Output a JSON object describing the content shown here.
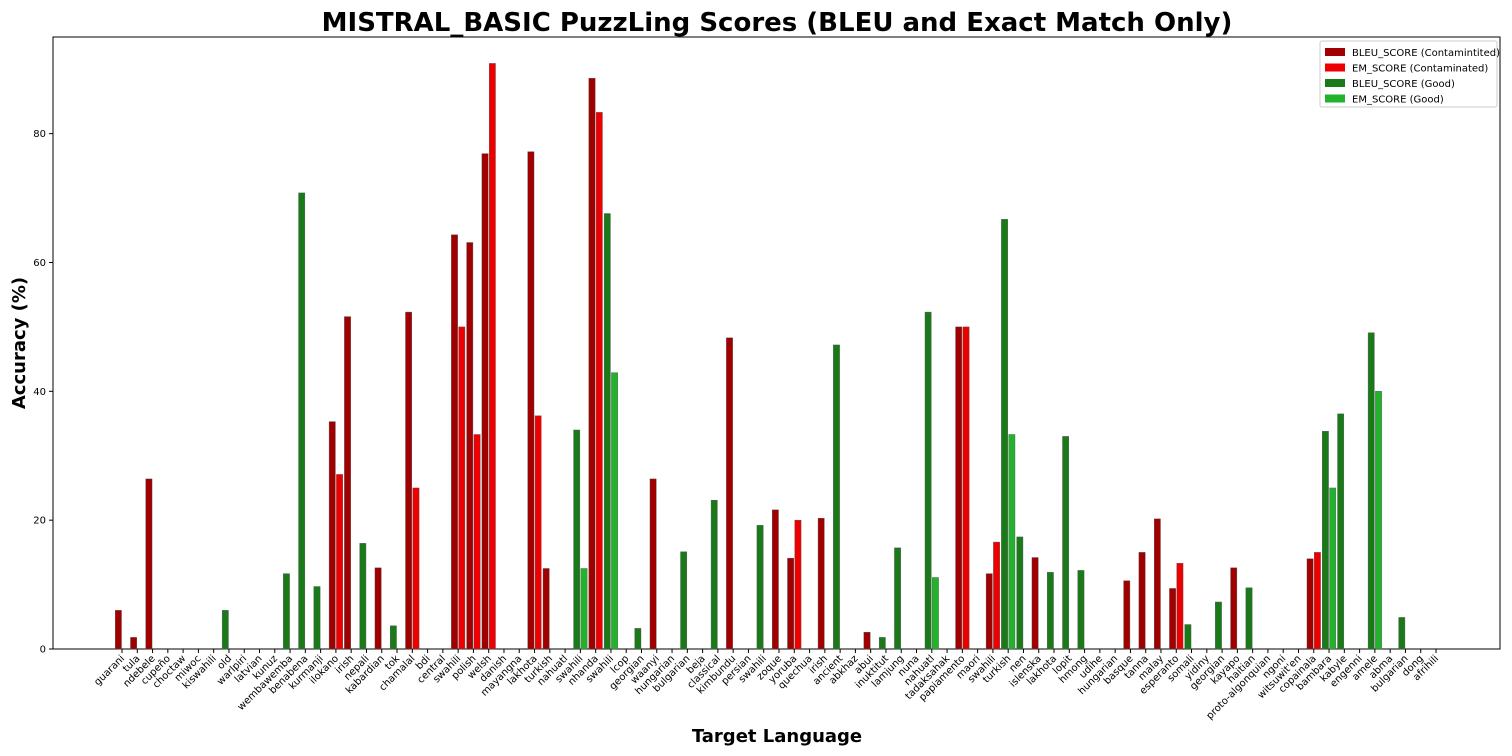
{
  "chart_data": {
    "type": "bar",
    "title": "MISTRAL_BASIC PuzzLing Scores (BLEU and Exact Match Only)",
    "xlabel": "Target Language",
    "ylabel": "Accuracy (%)",
    "ylim": [
      0,
      95
    ],
    "yticks": [
      0,
      20,
      40,
      60,
      80
    ],
    "legend_position": "top-right",
    "colors": {
      "bleu_contaminated": "#a00000",
      "em_contaminated": "#ee0000",
      "bleu_good": "#1a7a1a",
      "em_good": "#22b22c"
    },
    "legend": [
      {
        "key": "bleu_contaminated",
        "label": "BLEU_SCORE (Contamintited)"
      },
      {
        "key": "em_contaminated",
        "label": "EM_SCORE (Contaminated)"
      },
      {
        "key": "bleu_good",
        "label": "BLEU_SCORE (Good)"
      },
      {
        "key": "em_good",
        "label": "EM_SCORE (Good)"
      }
    ],
    "categories": [
      {
        "label": "guarani",
        "group": "contaminated",
        "bleu": 6.0,
        "em": 0
      },
      {
        "label": "tula",
        "group": "contaminated",
        "bleu": 1.8,
        "em": 0
      },
      {
        "label": "ndebele",
        "group": "contaminated",
        "bleu": 26.4,
        "em": 0
      },
      {
        "label": "cupeño",
        "group": "contaminated",
        "bleu": 0,
        "em": 0
      },
      {
        "label": "choctaw",
        "group": "contaminated",
        "bleu": 0,
        "em": 0
      },
      {
        "label": "miwoc",
        "group": "contaminated",
        "bleu": 0,
        "em": 0
      },
      {
        "label": "kiswahili",
        "group": "contaminated",
        "bleu": 0,
        "em": 0
      },
      {
        "label": "old",
        "group": "good",
        "bleu": 6.0,
        "em": 0
      },
      {
        "label": "warlpiri",
        "group": "good",
        "bleu": 0,
        "em": 0
      },
      {
        "label": "latvian",
        "group": "good",
        "bleu": 0,
        "em": 0
      },
      {
        "label": "kunuz",
        "group": "good",
        "bleu": 0,
        "em": 0
      },
      {
        "label": "wembawemba",
        "group": "good",
        "bleu": 11.7,
        "em": 0
      },
      {
        "label": "benabena",
        "group": "good",
        "bleu": 70.8,
        "em": 0
      },
      {
        "label": "kurmanji",
        "group": "good",
        "bleu": 9.7,
        "em": 0
      },
      {
        "label": "ilokano",
        "group": "contaminated",
        "bleu": 35.3,
        "em": 27.1
      },
      {
        "label": "irish",
        "group": "contaminated",
        "bleu": 51.6,
        "em": 0
      },
      {
        "label": "nepali",
        "group": "good",
        "bleu": 16.4,
        "em": 0
      },
      {
        "label": "kabardian",
        "group": "contaminated",
        "bleu": 12.6,
        "em": 0
      },
      {
        "label": "tok",
        "group": "good",
        "bleu": 3.6,
        "em": 0
      },
      {
        "label": "chamalal",
        "group": "contaminated",
        "bleu": 52.3,
        "em": 25.0
      },
      {
        "label": "bdi",
        "group": "contaminated",
        "bleu": 0,
        "em": 0
      },
      {
        "label": "central",
        "group": "contaminated",
        "bleu": 0,
        "em": 0
      },
      {
        "label": "swahili",
        "group": "contaminated",
        "bleu": 64.3,
        "em": 50.0
      },
      {
        "label": "polish",
        "group": "contaminated",
        "bleu": 63.1,
        "em": 33.3
      },
      {
        "label": "welsh",
        "group": "contaminated",
        "bleu": 76.9,
        "em": 90.9
      },
      {
        "label": "danish",
        "group": "contaminated",
        "bleu": 0,
        "em": 0
      },
      {
        "label": "mayangna",
        "group": "contaminated",
        "bleu": 0,
        "em": 0
      },
      {
        "label": "lakhota",
        "group": "contaminated",
        "bleu": 77.2,
        "em": 36.2
      },
      {
        "label": "turkish",
        "group": "contaminated",
        "bleu": 12.5,
        "em": 0
      },
      {
        "label": "nahuatl",
        "group": "contaminated",
        "bleu": 0,
        "em": 0
      },
      {
        "label": "swahili",
        "group": "good",
        "bleu": 34.0,
        "em": 12.5
      },
      {
        "label": "nhanda",
        "group": "contaminated",
        "bleu": 88.6,
        "em": 83.3
      },
      {
        "label": "swahili",
        "group": "good",
        "bleu": 67.6,
        "em": 42.9
      },
      {
        "label": "lcop",
        "group": "good",
        "bleu": 0,
        "em": 0
      },
      {
        "label": "georgian",
        "group": "good",
        "bleu": 3.2,
        "em": 0
      },
      {
        "label": "waanyi",
        "group": "contaminated",
        "bleu": 26.4,
        "em": 0
      },
      {
        "label": "hungarian",
        "group": "good",
        "bleu": 0,
        "em": 0
      },
      {
        "label": "bulgarian",
        "group": "good",
        "bleu": 15.1,
        "em": 0
      },
      {
        "label": "beja",
        "group": "good",
        "bleu": 0,
        "em": 0
      },
      {
        "label": "classical",
        "group": "good",
        "bleu": 23.1,
        "em": 0
      },
      {
        "label": "kimbundu",
        "group": "contaminated",
        "bleu": 48.3,
        "em": 0
      },
      {
        "label": "persian",
        "group": "good",
        "bleu": 0,
        "em": 0
      },
      {
        "label": "swahili",
        "group": "good",
        "bleu": 19.2,
        "em": 0
      },
      {
        "label": "zoque",
        "group": "contaminated",
        "bleu": 21.6,
        "em": 0
      },
      {
        "label": "yoruba",
        "group": "contaminated",
        "bleu": 14.1,
        "em": 20.0
      },
      {
        "label": "quechua",
        "group": "contaminated",
        "bleu": 0,
        "em": 0
      },
      {
        "label": "irish",
        "group": "contaminated",
        "bleu": 20.3,
        "em": 0
      },
      {
        "label": "ancient",
        "group": "good",
        "bleu": 47.2,
        "em": 0
      },
      {
        "label": "abkhaz",
        "group": "good",
        "bleu": 0,
        "em": 0
      },
      {
        "label": "abui",
        "group": "contaminated",
        "bleu": 2.6,
        "em": 0
      },
      {
        "label": "inuktitut",
        "group": "good",
        "bleu": 1.8,
        "em": 0
      },
      {
        "label": "lamjung",
        "group": "good",
        "bleu": 15.7,
        "em": 0
      },
      {
        "label": "nuna",
        "group": "good",
        "bleu": 0,
        "em": 0
      },
      {
        "label": "nahuatl",
        "group": "good",
        "bleu": 52.3,
        "em": 11.1
      },
      {
        "label": "tadaksahak",
        "group": "good",
        "bleu": 0,
        "em": 0
      },
      {
        "label": "papiamento",
        "group": "contaminated",
        "bleu": 50.0,
        "em": 50.0
      },
      {
        "label": "maori",
        "group": "contaminated",
        "bleu": 0,
        "em": 0
      },
      {
        "label": "swahili",
        "group": "contaminated",
        "bleu": 11.7,
        "em": 16.6
      },
      {
        "label": "turkish",
        "group": "good",
        "bleu": 66.7,
        "em": 33.3
      },
      {
        "label": "nen",
        "group": "good",
        "bleu": 17.4,
        "em": 0
      },
      {
        "label": "islenska",
        "group": "contaminated",
        "bleu": 14.2,
        "em": 0
      },
      {
        "label": "lakhota",
        "group": "good",
        "bleu": 11.9,
        "em": 0
      },
      {
        "label": "lopit",
        "group": "good",
        "bleu": 33.0,
        "em": 0
      },
      {
        "label": "hmong",
        "group": "good",
        "bleu": 12.2,
        "em": 0
      },
      {
        "label": "udihe",
        "group": "good",
        "bleu": 0,
        "em": 0
      },
      {
        "label": "hungarian",
        "group": "good",
        "bleu": 0,
        "em": 0
      },
      {
        "label": "basque",
        "group": "contaminated",
        "bleu": 10.6,
        "em": 0
      },
      {
        "label": "tanna",
        "group": "contaminated",
        "bleu": 15.0,
        "em": 0
      },
      {
        "label": "malay",
        "group": "contaminated",
        "bleu": 20.2,
        "em": 0
      },
      {
        "label": "esperanto",
        "group": "contaminated",
        "bleu": 9.4,
        "em": 13.3
      },
      {
        "label": "somali",
        "group": "good",
        "bleu": 3.8,
        "em": 0
      },
      {
        "label": "yidiny",
        "group": "good",
        "bleu": 0,
        "em": 0
      },
      {
        "label": "georgian",
        "group": "good",
        "bleu": 7.3,
        "em": 0
      },
      {
        "label": "kayapo",
        "group": "contaminated",
        "bleu": 12.6,
        "em": 0
      },
      {
        "label": "haitian",
        "group": "good",
        "bleu": 9.5,
        "em": 0
      },
      {
        "label": "proto-algonquian",
        "group": "good",
        "bleu": 0,
        "em": 0
      },
      {
        "label": "ngoni",
        "group": "good",
        "bleu": 0,
        "em": 0
      },
      {
        "label": "witsuwit'en",
        "group": "good",
        "bleu": 0,
        "em": 0
      },
      {
        "label": "copainala",
        "group": "contaminated",
        "bleu": 14.0,
        "em": 15.0
      },
      {
        "label": "bambara",
        "group": "good",
        "bleu": 33.8,
        "em": 25.0
      },
      {
        "label": "kabyle",
        "group": "good",
        "bleu": 36.5,
        "em": 0
      },
      {
        "label": "engenni",
        "group": "good",
        "bleu": 0,
        "em": 0
      },
      {
        "label": "amele",
        "group": "good",
        "bleu": 49.1,
        "em": 40.0
      },
      {
        "label": "abma",
        "group": "good",
        "bleu": 0,
        "em": 0
      },
      {
        "label": "bulgarian",
        "group": "good",
        "bleu": 4.9,
        "em": 0
      },
      {
        "label": "dong",
        "group": "good",
        "bleu": 0,
        "em": 0
      },
      {
        "label": "afrihili",
        "group": "good",
        "bleu": 0,
        "em": 0
      }
    ]
  }
}
